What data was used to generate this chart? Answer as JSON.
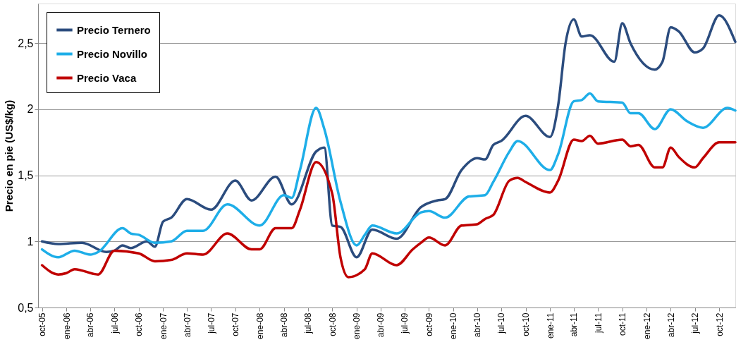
{
  "chart_data": {
    "type": "line",
    "ylabel": "Precio en pie (US$/kg)",
    "xlim": [
      "2005-09-16",
      "2012-12-01"
    ],
    "ylim": [
      0.5,
      2.8
    ],
    "yticks": [
      {
        "value": 0.5,
        "label": "0,5"
      },
      {
        "value": 1,
        "label": "1"
      },
      {
        "value": 1.5,
        "label": "1,5"
      },
      {
        "value": 2,
        "label": "2"
      },
      {
        "value": 2.5,
        "label": "2,5"
      }
    ],
    "xticks": [
      {
        "value": "2005-10",
        "label": "oct-05"
      },
      {
        "value": "2006-01",
        "label": "ene-06"
      },
      {
        "value": "2006-04",
        "label": "abr-06"
      },
      {
        "value": "2006-07",
        "label": "jul-06"
      },
      {
        "value": "2006-10",
        "label": "oct-06"
      },
      {
        "value": "2007-01",
        "label": "ene-07"
      },
      {
        "value": "2007-04",
        "label": "abr-07"
      },
      {
        "value": "2007-07",
        "label": "jul-07"
      },
      {
        "value": "2007-10",
        "label": "oct-07"
      },
      {
        "value": "2008-01",
        "label": "ene-08"
      },
      {
        "value": "2008-04",
        "label": "abr-08"
      },
      {
        "value": "2008-07",
        "label": "jul-08"
      },
      {
        "value": "2008-10",
        "label": "oct-08"
      },
      {
        "value": "2009-01",
        "label": "ene-09"
      },
      {
        "value": "2009-04",
        "label": "abr-09"
      },
      {
        "value": "2009-07",
        "label": "jul-09"
      },
      {
        "value": "2009-10",
        "label": "oct-09"
      },
      {
        "value": "2010-01",
        "label": "ene-10"
      },
      {
        "value": "2010-04",
        "label": "abr-10"
      },
      {
        "value": "2010-07",
        "label": "jul-10"
      },
      {
        "value": "2010-10",
        "label": "oct-10"
      },
      {
        "value": "2011-01",
        "label": "ene-11"
      },
      {
        "value": "2011-04",
        "label": "abr-11"
      },
      {
        "value": "2011-07",
        "label": "jul-11"
      },
      {
        "value": "2011-10",
        "label": "oct-11"
      },
      {
        "value": "2012-01",
        "label": "ene-12"
      },
      {
        "value": "2012-04",
        "label": "abr-12"
      },
      {
        "value": "2012-07",
        "label": "jul-12"
      },
      {
        "value": "2012-10",
        "label": "oct-12"
      }
    ],
    "grid": "y",
    "legend": "top left",
    "line_style": "solid",
    "series": [
      {
        "name": "Precio Ternero",
        "color": "#2b4c7e",
        "x": [
          "2005-10",
          "2005-12",
          "2006-03",
          "2006-06",
          "2006-07",
          "2006-08",
          "2006-09",
          "2006-11",
          "2006-12",
          "2007-01",
          "2007-02",
          "2007-04",
          "2007-07",
          "2007-10",
          "2007-12",
          "2008-03",
          "2008-05",
          "2008-08",
          "2008-09",
          "2008-10",
          "2008-11",
          "2009-01",
          "2009-03",
          "2009-06",
          "2009-09",
          "2009-11",
          "2009-12",
          "2010-02",
          "2010-04",
          "2010-05",
          "2010-06",
          "2010-07",
          "2010-10",
          "2011-01",
          "2011-02",
          "2011-03",
          "2011-04",
          "2011-05",
          "2011-06",
          "2011-09",
          "2011-10",
          "2011-11",
          "2012-02",
          "2012-03",
          "2012-04",
          "2012-05",
          "2012-07",
          "2012-08",
          "2012-10",
          "2012-12"
        ],
        "values": [
          1.0,
          0.98,
          0.99,
          0.92,
          0.93,
          0.97,
          0.95,
          1.0,
          0.96,
          1.15,
          1.18,
          1.32,
          1.24,
          1.46,
          1.31,
          1.49,
          1.28,
          1.68,
          1.71,
          1.12,
          1.11,
          0.88,
          1.09,
          1.02,
          1.26,
          1.31,
          1.32,
          1.54,
          1.63,
          1.62,
          1.73,
          1.76,
          1.95,
          1.79,
          2.03,
          2.5,
          2.68,
          2.55,
          2.56,
          2.36,
          2.65,
          2.5,
          2.3,
          2.36,
          2.62,
          2.59,
          2.43,
          2.46,
          2.71,
          2.51
        ]
      },
      {
        "name": "Precio Novillo",
        "color": "#1eaee8",
        "x": [
          "2005-10",
          "2005-12",
          "2006-02",
          "2006-04",
          "2006-05",
          "2006-08",
          "2006-09",
          "2006-10",
          "2006-12",
          "2007-02",
          "2007-04",
          "2007-06",
          "2007-09",
          "2008-01",
          "2008-04",
          "2008-05",
          "2008-06",
          "2008-08",
          "2008-09",
          "2008-11",
          "2009-01",
          "2009-02",
          "2009-03",
          "2009-06",
          "2009-09",
          "2009-10",
          "2009-12",
          "2010-03",
          "2010-05",
          "2010-06",
          "2010-08",
          "2010-09",
          "2011-01",
          "2011-02",
          "2011-04",
          "2011-05",
          "2011-06",
          "2011-07",
          "2011-10",
          "2011-11",
          "2011-12",
          "2012-02",
          "2012-04",
          "2012-06",
          "2012-08",
          "2012-11",
          "2012-12"
        ],
        "values": [
          0.94,
          0.88,
          0.93,
          0.9,
          0.92,
          1.1,
          1.06,
          1.05,
          0.99,
          1.0,
          1.08,
          1.08,
          1.28,
          1.12,
          1.35,
          1.33,
          1.54,
          2.01,
          1.85,
          1.3,
          0.97,
          1.05,
          1.12,
          1.06,
          1.22,
          1.23,
          1.18,
          1.34,
          1.35,
          1.45,
          1.68,
          1.76,
          1.54,
          1.66,
          2.06,
          2.07,
          2.12,
          2.06,
          2.05,
          1.97,
          1.97,
          1.85,
          2.0,
          1.91,
          1.86,
          2.01,
          1.99
        ]
      },
      {
        "name": "Precio Vaca",
        "color": "#c00000",
        "x": [
          "2005-10",
          "2005-12",
          "2006-01",
          "2006-02",
          "2006-05",
          "2006-07",
          "2006-10",
          "2006-12",
          "2007-02",
          "2007-04",
          "2007-06",
          "2007-09",
          "2007-12",
          "2008-01",
          "2008-03",
          "2008-05",
          "2008-06",
          "2008-08",
          "2008-10",
          "2008-11",
          "2008-12",
          "2009-02",
          "2009-03",
          "2009-06",
          "2009-08",
          "2009-09",
          "2009-10",
          "2009-12",
          "2010-02",
          "2010-04",
          "2010-05",
          "2010-06",
          "2010-08",
          "2010-09",
          "2010-10",
          "2011-01",
          "2011-02",
          "2011-04",
          "2011-05",
          "2011-06",
          "2011-07",
          "2011-10",
          "2011-11",
          "2011-12",
          "2012-02",
          "2012-03",
          "2012-04",
          "2012-05",
          "2012-07",
          "2012-08",
          "2012-10",
          "2012-12"
        ],
        "values": [
          0.82,
          0.75,
          0.76,
          0.79,
          0.75,
          0.93,
          0.91,
          0.85,
          0.86,
          0.91,
          0.9,
          1.06,
          0.94,
          0.94,
          1.1,
          1.1,
          1.24,
          1.6,
          1.36,
          0.88,
          0.73,
          0.79,
          0.91,
          0.82,
          0.94,
          0.99,
          1.03,
          0.97,
          1.12,
          1.13,
          1.17,
          1.2,
          1.46,
          1.48,
          1.45,
          1.37,
          1.46,
          1.77,
          1.76,
          1.8,
          1.74,
          1.77,
          1.72,
          1.73,
          1.56,
          1.56,
          1.71,
          1.64,
          1.56,
          1.63,
          1.75,
          1.75
        ]
      }
    ]
  }
}
